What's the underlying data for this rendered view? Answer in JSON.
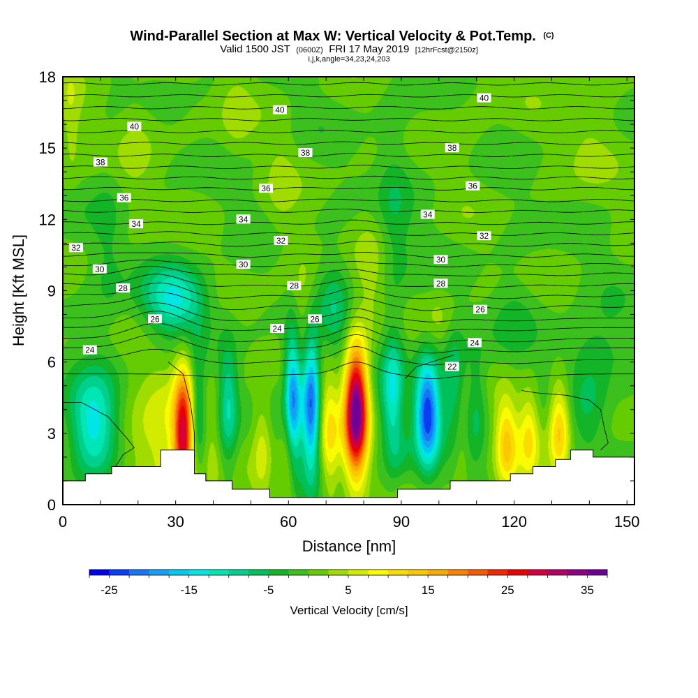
{
  "chart_data": {
    "type": "heatmap",
    "title_main": "Wind-Parallel Section at Max W: Vertical Velocity & Pot.Temp.",
    "title_mark": "(C)",
    "subtitle_valid": "Valid 1500 JST",
    "subtitle_utc": "(0600Z)",
    "subtitle_date": "FRI 17 May 2019",
    "subtitle_fcst": "[12hrFcst@2150z]",
    "params": "i,j,k,angle=34,23,24,203",
    "xlabel": "Distance [nm]",
    "ylabel": "Height [Kft MSL]",
    "xlim": [
      0,
      152
    ],
    "ylim": [
      0,
      18
    ],
    "xticks": [
      0,
      30,
      60,
      90,
      120,
      150
    ],
    "yticks": [
      0,
      3,
      6,
      9,
      12,
      15,
      18
    ],
    "colorbar": {
      "title": "Vertical Velocity [cm/s]",
      "ticks": [
        -25,
        -15,
        -5,
        5,
        15,
        25,
        35
      ],
      "min": -27.5,
      "max": 37.5,
      "colors": [
        "#0000f0",
        "#0a3cf5",
        "#1478f5",
        "#14a0f5",
        "#00c8f0",
        "#00e6e6",
        "#00e6b4",
        "#00d08c",
        "#00c05a",
        "#14b428",
        "#3cc01e",
        "#64cc00",
        "#a0dc00",
        "#d2eb00",
        "#fafa00",
        "#fadc00",
        "#fac800",
        "#faaa00",
        "#fa8200",
        "#f55a00",
        "#f02800",
        "#eb0000",
        "#d2003c",
        "#b40064",
        "#8c0082",
        "#6e0096"
      ]
    },
    "w_field": {
      "base": 0,
      "cells": [
        {
          "x": 32,
          "z": 2.9,
          "sx": 1.8,
          "sz": 2.0,
          "w": 26
        },
        {
          "x": 28,
          "z": 2.5,
          "sx": 4.0,
          "sz": 2.8,
          "w": 4
        },
        {
          "x": 20,
          "z": 2.2,
          "sx": 6.0,
          "sz": 1.5,
          "w": 5
        },
        {
          "x": 40,
          "z": 2.2,
          "sx": 1.5,
          "sz": 2.2,
          "w": 3
        },
        {
          "x": 53,
          "z": 2.6,
          "sx": 1.8,
          "sz": 1.6,
          "w": 6
        },
        {
          "x": 60,
          "z": 2.7,
          "sx": 1.5,
          "sz": 2.2,
          "w": 10
        },
        {
          "x": 71,
          "z": 3.0,
          "sx": 1.8,
          "sz": 2.0,
          "w": 9
        },
        {
          "x": 78,
          "z": 4.0,
          "sx": 2.2,
          "sz": 1.9,
          "w": 38
        },
        {
          "x": 90,
          "z": 2.6,
          "sx": 1.6,
          "sz": 2.0,
          "w": 4
        },
        {
          "x": 106,
          "z": 2.6,
          "sx": 1.5,
          "sz": 1.6,
          "w": 3
        },
        {
          "x": 118,
          "z": 2.6,
          "sx": 2.0,
          "sz": 1.4,
          "w": 12
        },
        {
          "x": 124,
          "z": 3.0,
          "sx": 2.0,
          "sz": 1.4,
          "w": 10
        },
        {
          "x": 132,
          "z": 3.2,
          "sx": 2.0,
          "sz": 1.4,
          "w": 14
        },
        {
          "x": 64,
          "z": 8.5,
          "sx": 2.5,
          "sz": 1.5,
          "w": 4
        },
        {
          "x": 82,
          "z": 9.5,
          "sx": 3.0,
          "sz": 1.8,
          "w": 3
        },
        {
          "x": 66,
          "z": 4.3,
          "sx": 1.6,
          "sz": 2.0,
          "w": -23
        },
        {
          "x": 61,
          "z": 4.4,
          "sx": 1.6,
          "sz": 2.0,
          "w": -25
        },
        {
          "x": 97,
          "z": 3.9,
          "sx": 2.3,
          "sz": 1.6,
          "w": -25
        },
        {
          "x": 88,
          "z": 4.6,
          "sx": 2.2,
          "sz": 1.8,
          "w": -13
        },
        {
          "x": 8,
          "z": 3.2,
          "sx": 4.5,
          "sz": 1.6,
          "w": -14
        },
        {
          "x": 44,
          "z": 4.2,
          "sx": 1.8,
          "sz": 1.8,
          "w": -10
        },
        {
          "x": 36,
          "z": 4.0,
          "sx": 1.2,
          "sz": 1.6,
          "w": -7
        },
        {
          "x": 104,
          "z": 5.2,
          "sx": 2.0,
          "sz": 1.5,
          "w": -8
        },
        {
          "x": 110,
          "z": 4.2,
          "sx": 2.0,
          "sz": 1.6,
          "w": -6
        },
        {
          "x": 90,
          "z": 2.0,
          "sx": 2.0,
          "sz": 1.0,
          "w": -6
        },
        {
          "x": 140,
          "z": 4.3,
          "sx": 3.5,
          "sz": 1.5,
          "w": -5
        },
        {
          "x": 30,
          "z": 8.6,
          "sx": 6.0,
          "sz": 1.0,
          "w": -13
        },
        {
          "x": 72,
          "z": 8.0,
          "sx": 3.0,
          "sz": 1.6,
          "w": -6
        },
        {
          "x": 12,
          "z": 11.0,
          "sx": 3.0,
          "sz": 3.0,
          "w": -3
        },
        {
          "x": 88,
          "z": 11.5,
          "sx": 3.0,
          "sz": 3.0,
          "w": -4
        },
        {
          "x": 140,
          "z": 6.5,
          "sx": 8.0,
          "sz": 1.0,
          "w": -4
        },
        {
          "x": 20,
          "z": 15.5,
          "sx": 4.0,
          "sz": 2.0,
          "w": 3
        },
        {
          "x": 46,
          "z": 16.5,
          "sx": 3.0,
          "sz": 1.5,
          "w": 3
        },
        {
          "x": 110,
          "z": 17.0,
          "sx": 4.0,
          "sz": 1.5,
          "w": 2
        },
        {
          "x": 140,
          "z": 16.0,
          "sx": 5.0,
          "sz": 2.0,
          "w": 3
        },
        {
          "x": 2,
          "z": 16.0,
          "sx": 2.0,
          "sz": 2.0,
          "w": 4
        },
        {
          "x": 58,
          "z": 13.0,
          "sx": 3.0,
          "sz": 2.0,
          "w": 2
        },
        {
          "x": 120,
          "z": 8.0,
          "sx": 4.0,
          "sz": 1.2,
          "w": -3
        },
        {
          "x": 100,
          "z": 7.8,
          "sx": 3.0,
          "sz": 1.0,
          "w": 3
        }
      ]
    },
    "terrain": [
      [
        0,
        1.0
      ],
      [
        6,
        1.0
      ],
      [
        6,
        1.3
      ],
      [
        13,
        1.3
      ],
      [
        13,
        1.6
      ],
      [
        26,
        1.6
      ],
      [
        26,
        2.3
      ],
      [
        35,
        2.3
      ],
      [
        35,
        1.3
      ],
      [
        38,
        1.3
      ],
      [
        38,
        1.0
      ],
      [
        45,
        1.0
      ],
      [
        45,
        0.65
      ],
      [
        55,
        0.65
      ],
      [
        55,
        0.3
      ],
      [
        89,
        0.3
      ],
      [
        89,
        0.65
      ],
      [
        103,
        0.65
      ],
      [
        103,
        1.0
      ],
      [
        119,
        1.0
      ],
      [
        119,
        1.3
      ],
      [
        125,
        1.3
      ],
      [
        125,
        1.6
      ],
      [
        131,
        1.6
      ],
      [
        131,
        1.9
      ],
      [
        135,
        1.9
      ],
      [
        135,
        2.3
      ],
      [
        141,
        2.3
      ],
      [
        141,
        2.0
      ],
      [
        152,
        2.0
      ]
    ],
    "isentropes": {
      "levels": [
        {
          "z0": 5.5,
          "x0": 0.0,
          "x1": 0.5,
          "x2": 0.0
        },
        {
          "z0": 6.1,
          "x0": 0.45,
          "x1": 0.55,
          "x2": 0.0,
          "label": "24"
        },
        {
          "z0": 6.6,
          "x0": 0.58,
          "x1": 0.55,
          "x2": 0.0
        },
        {
          "z0": 7.0,
          "x0": 0.64,
          "x1": 0.5,
          "x2": 0.0
        },
        {
          "z0": 7.45,
          "x0": 0.7,
          "x1": 0.45,
          "x2": 0.0
        },
        {
          "z0": 7.85,
          "x0": 0.65,
          "x1": 0.4,
          "x2": 0.0,
          "label": "26"
        },
        {
          "z0": 8.35,
          "x0": 0.6,
          "x1": 0.35,
          "x2": 0.0
        },
        {
          "z0": 8.8,
          "x0": 0.5,
          "x1": 0.3,
          "x2": 0.0
        },
        {
          "z0": 9.25,
          "x0": 0.4,
          "x1": 0.25,
          "x2": 0.0,
          "label": "28"
        },
        {
          "z0": 9.7,
          "x0": 0.3,
          "x1": 0.2,
          "x2": 0.0
        },
        {
          "z0": 10.1,
          "x0": 0.2,
          "x1": 0.18,
          "x2": 0.0,
          "label": "30"
        },
        {
          "z0": 10.5,
          "x0": 0.15,
          "x1": 0.15,
          "x2": 0.0
        },
        {
          "z0": 10.95,
          "x0": 0.1,
          "x1": 0.12,
          "x2": 0.0,
          "label": "32"
        },
        {
          "z0": 11.4,
          "x0": 0.05,
          "x1": 0.1,
          "x2": 0.0
        },
        {
          "z0": 11.85,
          "x0": 0.0,
          "x1": 0.08,
          "x2": 0.0,
          "label": "34"
        },
        {
          "z0": 12.35,
          "x0": 0.0,
          "x1": 0.06,
          "x2": 0.0
        },
        {
          "z0": 12.8,
          "x0": 0.0,
          "x1": 0.06,
          "x2": 0.0
        },
        {
          "z0": 13.3,
          "x0": 0.0,
          "x1": 0.05,
          "x2": 0.0,
          "label": "36"
        },
        {
          "z0": 13.75,
          "x0": 0.0,
          "x1": 0.05,
          "x2": 0.0
        },
        {
          "z0": 14.2,
          "x0": 0.0,
          "x1": 0.04,
          "x2": 0.0
        },
        {
          "z0": 14.7,
          "x0": 0.0,
          "x1": 0.04,
          "x2": 0.0,
          "label": "38"
        },
        {
          "z0": 15.2,
          "x0": 0.0,
          "x1": 0.03,
          "x2": 0.0
        },
        {
          "z0": 15.7,
          "x0": 0.0,
          "x1": 0.03,
          "x2": 0.0
        },
        {
          "z0": 16.2,
          "x0": 0.0,
          "x1": 0.02,
          "x2": 0.0,
          "label": "40"
        },
        {
          "z0": 16.7,
          "x0": 0.0,
          "x1": 0.02,
          "x2": 0.0
        },
        {
          "z0": 17.2,
          "x0": 0.0,
          "x1": 0.01,
          "x2": 0.0
        },
        {
          "z0": 17.7,
          "x0": 0.0,
          "x1": 0.01,
          "x2": 0.0
        }
      ],
      "extra": [
        {
          "points": [
            [
              0,
              4.3
            ],
            [
              5,
              4.3
            ],
            [
              12,
              3.7
            ],
            [
              17,
              2.8
            ],
            [
              19,
              2.4
            ],
            [
              16,
              2.1
            ],
            [
              14,
              1.6
            ]
          ]
        },
        {
          "points": [
            [
              28,
              6.0
            ],
            [
              32,
              5.5
            ],
            [
              34,
              4.2
            ],
            [
              35,
              3.0
            ],
            [
              35,
              2.3
            ]
          ]
        },
        {
          "points": [
            [
              122,
              4.8
            ],
            [
              126,
              4.7
            ],
            [
              134,
              4.6
            ],
            [
              140,
              4.4
            ],
            [
              143,
              4.0
            ],
            [
              144,
              3.2
            ],
            [
              145,
              2.6
            ],
            [
              143,
              2.3
            ]
          ]
        },
        {
          "points": [
            [
              91,
              5.3
            ],
            [
              94,
              5.8
            ],
            [
              100,
              6.1
            ],
            [
              104,
              6.3
            ]
          ],
          "label": "22"
        }
      ]
    },
    "contour_labels": [
      {
        "text": "24",
        "x": 7.2,
        "y": 6.5
      },
      {
        "text": "26",
        "x": 24.5,
        "y": 7.8
      },
      {
        "text": "28",
        "x": 16.0,
        "y": 9.1
      },
      {
        "text": "30",
        "x": 9.8,
        "y": 9.9
      },
      {
        "text": "32",
        "x": 3.5,
        "y": 10.8
      },
      {
        "text": "34",
        "x": 19.5,
        "y": 11.8
      },
      {
        "text": "36",
        "x": 16.3,
        "y": 12.9
      },
      {
        "text": "38",
        "x": 10.0,
        "y": 14.4
      },
      {
        "text": "40",
        "x": 19.0,
        "y": 15.9
      },
      {
        "text": "34",
        "x": 48.0,
        "y": 12.0
      },
      {
        "text": "36",
        "x": 54.0,
        "y": 13.3
      },
      {
        "text": "38",
        "x": 64.5,
        "y": 14.8
      },
      {
        "text": "40",
        "x": 57.7,
        "y": 16.6
      },
      {
        "text": "32",
        "x": 58.0,
        "y": 11.1
      },
      {
        "text": "30",
        "x": 48.0,
        "y": 10.1
      },
      {
        "text": "28",
        "x": 61.5,
        "y": 9.2
      },
      {
        "text": "26",
        "x": 67.0,
        "y": 7.8
      },
      {
        "text": "24",
        "x": 57.0,
        "y": 7.4
      },
      {
        "text": "34",
        "x": 97.0,
        "y": 12.2
      },
      {
        "text": "36",
        "x": 109.0,
        "y": 13.4
      },
      {
        "text": "38",
        "x": 103.5,
        "y": 15.0
      },
      {
        "text": "40",
        "x": 112.0,
        "y": 17.1
      },
      {
        "text": "32",
        "x": 112.0,
        "y": 11.3
      },
      {
        "text": "30",
        "x": 100.5,
        "y": 10.3
      },
      {
        "text": "28",
        "x": 100.5,
        "y": 9.3
      },
      {
        "text": "26",
        "x": 111.0,
        "y": 8.2
      },
      {
        "text": "24",
        "x": 109.5,
        "y": 6.8
      },
      {
        "text": "22",
        "x": 103.5,
        "y": 5.8
      }
    ]
  }
}
